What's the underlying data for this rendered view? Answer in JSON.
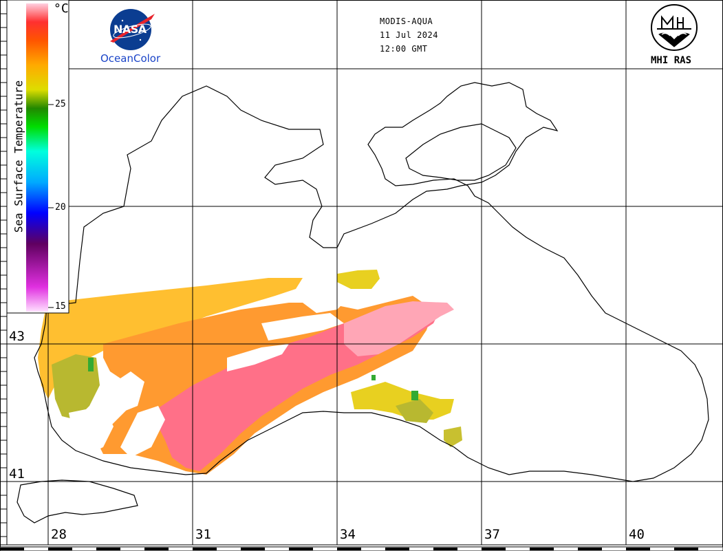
{
  "header": {
    "satellite": "MODIS-AQUA",
    "date": "11 Jul 2024",
    "time": "12:00 GMT"
  },
  "logos": {
    "left_caption": "OceanColor",
    "left_badge": "NASA",
    "right_caption": "MHI RAS"
  },
  "legend": {
    "title": "Sea Surface Temperature",
    "unit": "°C",
    "ticks": [
      "25",
      "20",
      "15"
    ],
    "colors": [
      "#ffe0ff",
      "#e030e0",
      "#600060",
      "#0000ff",
      "#00aaff",
      "#00ffdd",
      "#00dd00",
      "#228800",
      "#dddd00",
      "#ffaa00",
      "#ff5500",
      "#ff3030",
      "#ffd0e0"
    ]
  },
  "axes": {
    "latitudes": [
      "43",
      "41"
    ],
    "longitudes": [
      "28",
      "31",
      "34",
      "37",
      "40"
    ]
  },
  "sst_colors": {
    "pink": "#ff7088",
    "light_pink": "#ffa6b6",
    "orange": "#ff9a30",
    "yellow_orange": "#ffbf30",
    "yellow": "#e8d020",
    "olive": "#b8b830",
    "green": "#33aa33"
  }
}
